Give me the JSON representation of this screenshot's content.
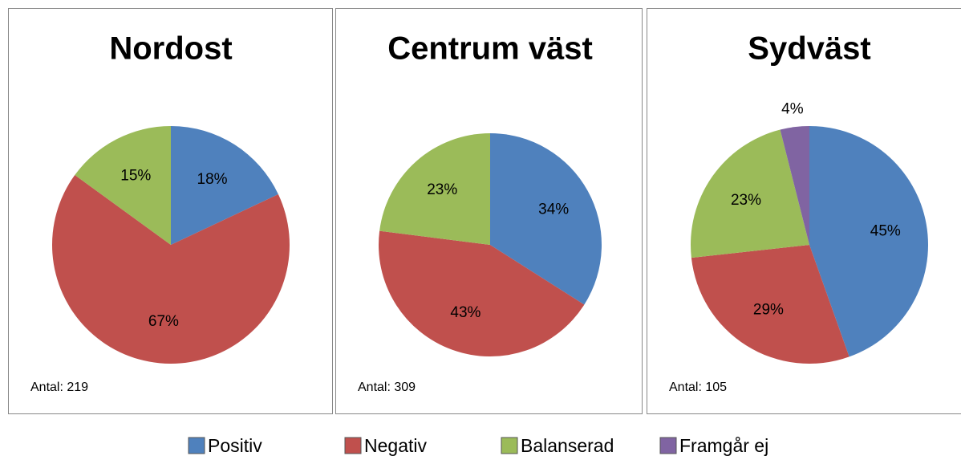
{
  "chart_data": [
    {
      "type": "pie",
      "title": "Nordost",
      "note": "Antal: 219",
      "categories": [
        "Positiv",
        "Negativ",
        "Balanserad"
      ],
      "values": [
        18,
        67,
        15
      ],
      "value_labels": [
        "18%",
        "67%",
        "15%"
      ],
      "colors": [
        "#4f81bd",
        "#c0504d",
        "#9bbb59"
      ]
    },
    {
      "type": "pie",
      "title": "Centrum väst",
      "note": "Antal: 309",
      "categories": [
        "Positiv",
        "Negativ",
        "Balanserad"
      ],
      "values": [
        34,
        43,
        23
      ],
      "value_labels": [
        "34%",
        "43%",
        "23%"
      ],
      "colors": [
        "#4f81bd",
        "#c0504d",
        "#9bbb59"
      ]
    },
    {
      "type": "pie",
      "title": "Sydväst",
      "note": "Antal: 105",
      "categories": [
        "Positiv",
        "Negativ",
        "Balanserad",
        "Framgår ej"
      ],
      "values": [
        45,
        29,
        23,
        4
      ],
      "value_labels": [
        "45%",
        "29%",
        "23%",
        "4%"
      ],
      "colors": [
        "#4f81bd",
        "#c0504d",
        "#9bbb59",
        "#8064a2"
      ]
    }
  ]
}
